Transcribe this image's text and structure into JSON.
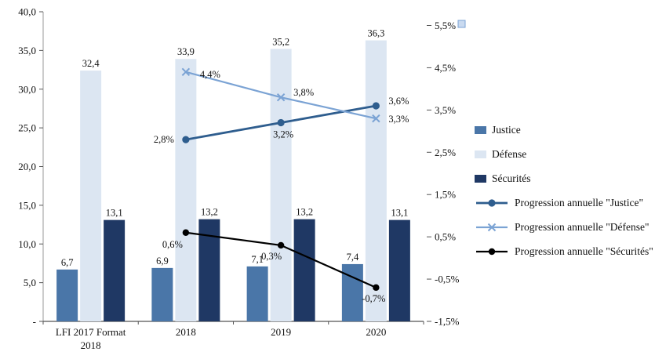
{
  "chart_data": {
    "type": "bar+line combo",
    "title": "",
    "xlabel": "",
    "ylabel": "",
    "grid": false,
    "legend_position": "right",
    "categories": [
      [
        "LFI 2017 Format",
        "2018"
      ],
      [
        "2018"
      ],
      [
        "2019"
      ],
      [
        "2020"
      ]
    ],
    "left_axis": {
      "min": 0,
      "max": 40,
      "ticks": [
        {
          "v": 40,
          "label": "40,0"
        },
        {
          "v": 35,
          "label": "35,0"
        },
        {
          "v": 30,
          "label": "30,0"
        },
        {
          "v": 25,
          "label": "25,0"
        },
        {
          "v": 20,
          "label": "20,0"
        },
        {
          "v": 15,
          "label": "15,0"
        },
        {
          "v": 10,
          "label": "10,0"
        },
        {
          "v": 5,
          "label": "5,0"
        },
        {
          "v": 0,
          "label": "-"
        }
      ]
    },
    "right_axis": {
      "min": -1.5,
      "max": 5.5,
      "ticks": [
        {
          "v": 5.5,
          "label": "5,5%"
        },
        {
          "v": 4.5,
          "label": "4,5%"
        },
        {
          "v": 3.5,
          "label": "3,5%"
        },
        {
          "v": 2.5,
          "label": "2,5%"
        },
        {
          "v": 1.5,
          "label": "1,5%"
        },
        {
          "v": 0.5,
          "label": "0,5%"
        },
        {
          "v": -0.5,
          "label": "-0,5%"
        },
        {
          "v": -1.5,
          "label": "-1,5%"
        }
      ]
    },
    "bar_series": [
      {
        "name": "Justice",
        "color": "#4a76a8",
        "values": [
          6.7,
          6.9,
          7.1,
          7.4
        ],
        "labels": [
          "6,7",
          "6,9",
          "7,1",
          "7,4"
        ]
      },
      {
        "name": "Défense",
        "color": "#dce6f2",
        "values": [
          32.4,
          33.9,
          35.2,
          36.3
        ],
        "labels": [
          "32,4",
          "33,9",
          "35,2",
          "36,3"
        ]
      },
      {
        "name": "Sécurités",
        "color": "#1f3864",
        "values": [
          13.1,
          13.2,
          13.2,
          13.1
        ],
        "labels": [
          "13,1",
          "13,2",
          "13,2",
          "13,1"
        ]
      }
    ],
    "line_series": [
      {
        "name": "Progression annuelle \"Justice\"",
        "color": "#2e5d8e",
        "marker": "circle",
        "x": [
          1,
          2,
          3
        ],
        "values": [
          2.8,
          3.2,
          3.6
        ],
        "labels": [
          "2,8%",
          "3,2%",
          "3,6%"
        ]
      },
      {
        "name": "Progression annuelle \"Défense\"",
        "color": "#7ba3d4",
        "marker": "x",
        "x": [
          1,
          2,
          3
        ],
        "values": [
          4.4,
          3.8,
          3.3
        ],
        "labels": [
          "4,4%",
          "3,8%",
          "3,3%"
        ]
      },
      {
        "name": "Progression annuelle \"Sécurités\"",
        "color": "#000000",
        "marker": "circle",
        "x": [
          1,
          2,
          3
        ],
        "values": [
          0.6,
          0.3,
          -0.7
        ],
        "labels": [
          "0,6%",
          "0,3%",
          "-0,7%"
        ]
      }
    ]
  }
}
